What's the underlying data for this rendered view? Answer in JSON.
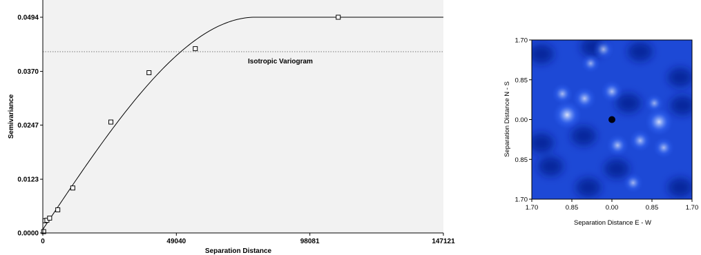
{
  "chart_data": [
    {
      "type": "scatter",
      "title": "",
      "xlabel": "Separation Distance",
      "ylabel": "Semivariance",
      "xlim": [
        0,
        147121
      ],
      "ylim": [
        0,
        0.0494
      ],
      "x_ticks": [
        0,
        49040,
        98081,
        147121
      ],
      "x_tick_labels": [
        "0",
        "49040",
        "98081",
        "147121"
      ],
      "y_ticks": [
        0.0,
        0.0123,
        0.0247,
        0.037,
        0.0494
      ],
      "y_tick_labels": [
        "0.0000",
        "0.0123",
        "0.0247",
        "0.0370",
        "0.0494"
      ],
      "annotation": "Isotropic Variogram",
      "reference_line_y": 0.0415,
      "series": [
        {
          "points": [
            {
              "x": 300,
              "y": 0.0003
            },
            {
              "x": 800,
              "y": 0.0028
            },
            {
              "x": 1500,
              "y": 0.0029
            },
            {
              "x": 2500,
              "y": 0.0034
            },
            {
              "x": 5500,
              "y": 0.0053
            },
            {
              "x": 11000,
              "y": 0.0103
            },
            {
              "x": 25000,
              "y": 0.0254
            },
            {
              "x": 39000,
              "y": 0.0367
            },
            {
              "x": 56000,
              "y": 0.0422
            },
            {
              "x": 108500,
              "y": 0.0494
            }
          ]
        }
      ],
      "model": {
        "type": "spherical",
        "nugget": 0.0008,
        "sill": 0.0494,
        "range": 78000
      }
    },
    {
      "type": "heatmap",
      "title": "",
      "xlabel": "Separation Distance E - W",
      "ylabel": "Separation Distance N - S",
      "x_tick_labels": [
        "1.70",
        "0.85",
        "0.00",
        "0.85",
        "1.70"
      ],
      "y_tick_labels": [
        "1.70",
        "0.85",
        "0.00",
        "0.85",
        "1.70"
      ],
      "xlim": [
        -1.7,
        1.7
      ],
      "ylim": [
        -1.7,
        1.7
      ],
      "peaks": [
        {
          "x": -0.18,
          "y": 1.5,
          "intensity": 0.45
        },
        {
          "x": -0.58,
          "y": 0.45,
          "intensity": 0.55
        },
        {
          "x": 0.0,
          "y": 0.6,
          "intensity": 0.5
        },
        {
          "x": -1.05,
          "y": 0.55,
          "intensity": 0.45
        },
        {
          "x": -0.95,
          "y": 0.1,
          "intensity": 0.8
        },
        {
          "x": 1.0,
          "y": -0.05,
          "intensity": 0.75
        },
        {
          "x": 0.12,
          "y": -0.55,
          "intensity": 0.5
        },
        {
          "x": 0.6,
          "y": -0.45,
          "intensity": 0.5
        },
        {
          "x": 1.1,
          "y": -0.6,
          "intensity": 0.45
        },
        {
          "x": 0.45,
          "y": -1.35,
          "intensity": 0.4
        },
        {
          "x": -0.45,
          "y": 1.2,
          "intensity": 0.35
        },
        {
          "x": 0.9,
          "y": 0.35,
          "intensity": 0.35
        }
      ],
      "center_value": 0.0,
      "colors": {
        "low": "#00007a",
        "mid": "#2a5cf0",
        "high": "#e8f0ff"
      }
    }
  ]
}
